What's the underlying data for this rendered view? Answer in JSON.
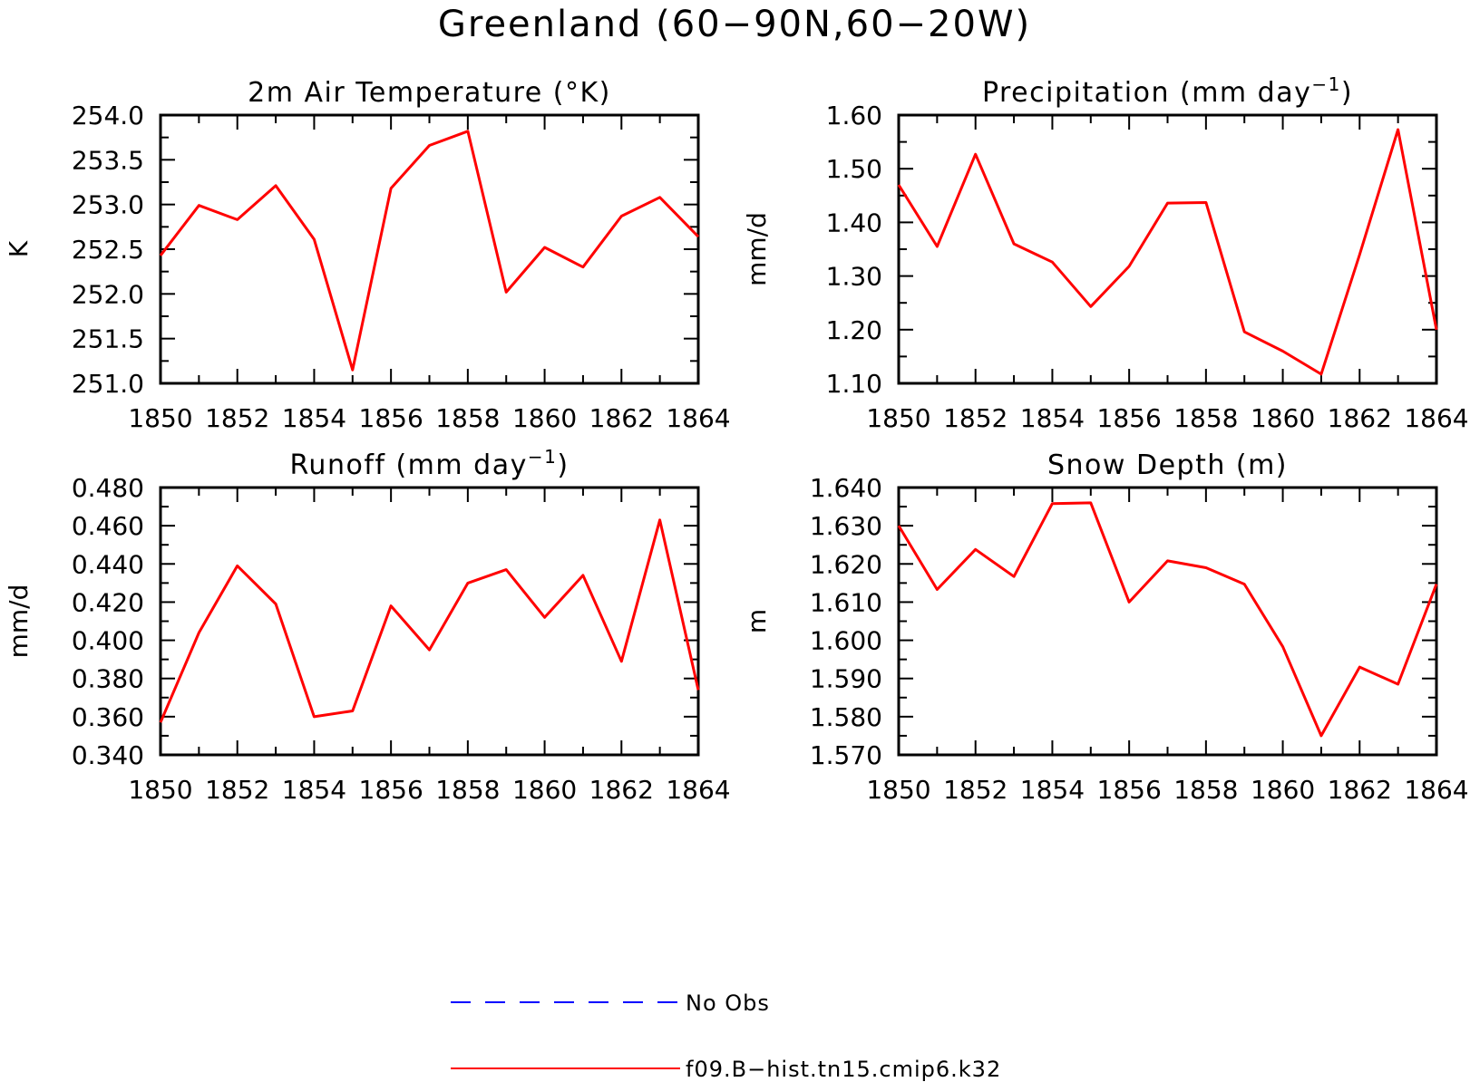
{
  "title": "Greenland (60−90N,60−20W)",
  "colors": {
    "model": "#ff0000",
    "obs": "#0000ff",
    "axis": "#000000"
  },
  "legend": [
    {
      "label": "No Obs",
      "style": "dashed",
      "color": "#0000ff"
    },
    {
      "label": "f09.B−hist.tn15.cmip6.k32",
      "style": "solid",
      "color": "#ff0000"
    }
  ],
  "chart_data": [
    {
      "type": "line",
      "title": "2m Air Temperature (°K)",
      "ylabel": "K",
      "xlabel": "",
      "x": [
        1850,
        1851,
        1852,
        1853,
        1854,
        1855,
        1856,
        1857,
        1858,
        1859,
        1860,
        1861,
        1862,
        1863,
        1864
      ],
      "xlim": [
        1850,
        1864
      ],
      "xticks": [
        "1850",
        "1852",
        "1854",
        "1856",
        "1858",
        "1860",
        "1862",
        "1864"
      ],
      "ylim": [
        251.0,
        254.0
      ],
      "yticks": [
        "251.0",
        "251.5",
        "252.0",
        "252.5",
        "253.0",
        "253.5",
        "254.0"
      ],
      "series": [
        {
          "name": "f09.B−hist.tn15.cmip6.k32",
          "values": [
            252.43,
            252.99,
            252.83,
            253.21,
            252.61,
            251.15,
            253.18,
            253.66,
            253.82,
            252.02,
            252.52,
            252.3,
            252.87,
            253.08,
            252.64
          ]
        }
      ]
    },
    {
      "type": "line",
      "title": "Precipitation (mm day",
      "title_sup": "−1",
      "title_end": ")",
      "ylabel": "mm/d",
      "xlabel": "",
      "x": [
        1850,
        1851,
        1852,
        1853,
        1854,
        1855,
        1856,
        1857,
        1858,
        1859,
        1860,
        1861,
        1862,
        1863,
        1864
      ],
      "xlim": [
        1850,
        1864
      ],
      "xticks": [
        "1850",
        "1852",
        "1854",
        "1856",
        "1858",
        "1860",
        "1862",
        "1864"
      ],
      "ylim": [
        1.1,
        1.6
      ],
      "yticks": [
        "1.10",
        "1.20",
        "1.30",
        "1.40",
        "1.50",
        "1.60"
      ],
      "series": [
        {
          "name": "f09.B−hist.tn15.cmip6.k32",
          "values": [
            1.47,
            1.355,
            1.527,
            1.36,
            1.326,
            1.243,
            1.318,
            1.436,
            1.437,
            1.196,
            1.16,
            1.117,
            1.34,
            1.573,
            1.2
          ]
        }
      ]
    },
    {
      "type": "line",
      "title": "Runoff (mm day",
      "title_sup": "−1",
      "title_end": ")",
      "ylabel": "mm/d",
      "xlabel": "",
      "x": [
        1850,
        1851,
        1852,
        1853,
        1854,
        1855,
        1856,
        1857,
        1858,
        1859,
        1860,
        1861,
        1862,
        1863,
        1864
      ],
      "xlim": [
        1850,
        1864
      ],
      "xticks": [
        "1850",
        "1852",
        "1854",
        "1856",
        "1858",
        "1860",
        "1862",
        "1864"
      ],
      "ylim": [
        0.34,
        0.48
      ],
      "yticks": [
        "0.340",
        "0.360",
        "0.380",
        "0.400",
        "0.420",
        "0.440",
        "0.460",
        "0.480"
      ],
      "series": [
        {
          "name": "f09.B−hist.tn15.cmip6.k32",
          "values": [
            0.357,
            0.404,
            0.439,
            0.419,
            0.36,
            0.363,
            0.418,
            0.395,
            0.43,
            0.437,
            0.412,
            0.434,
            0.389,
            0.463,
            0.374
          ]
        }
      ]
    },
    {
      "type": "line",
      "title": "Snow Depth (m)",
      "ylabel": "m",
      "xlabel": "",
      "x": [
        1850,
        1851,
        1852,
        1853,
        1854,
        1855,
        1856,
        1857,
        1858,
        1859,
        1860,
        1861,
        1862,
        1863,
        1864
      ],
      "xlim": [
        1850,
        1864
      ],
      "xticks": [
        "1850",
        "1852",
        "1854",
        "1856",
        "1858",
        "1860",
        "1862",
        "1864"
      ],
      "ylim": [
        1.57,
        1.64
      ],
      "yticks": [
        "1.570",
        "1.580",
        "1.590",
        "1.600",
        "1.610",
        "1.620",
        "1.630",
        "1.640"
      ],
      "series": [
        {
          "name": "f09.B−hist.tn15.cmip6.k32",
          "values": [
            1.63,
            1.6133,
            1.6238,
            1.6167,
            1.6358,
            1.636,
            1.61,
            1.6208,
            1.619,
            1.6147,
            1.5983,
            1.575,
            1.593,
            1.5885,
            1.6147
          ]
        }
      ]
    }
  ]
}
